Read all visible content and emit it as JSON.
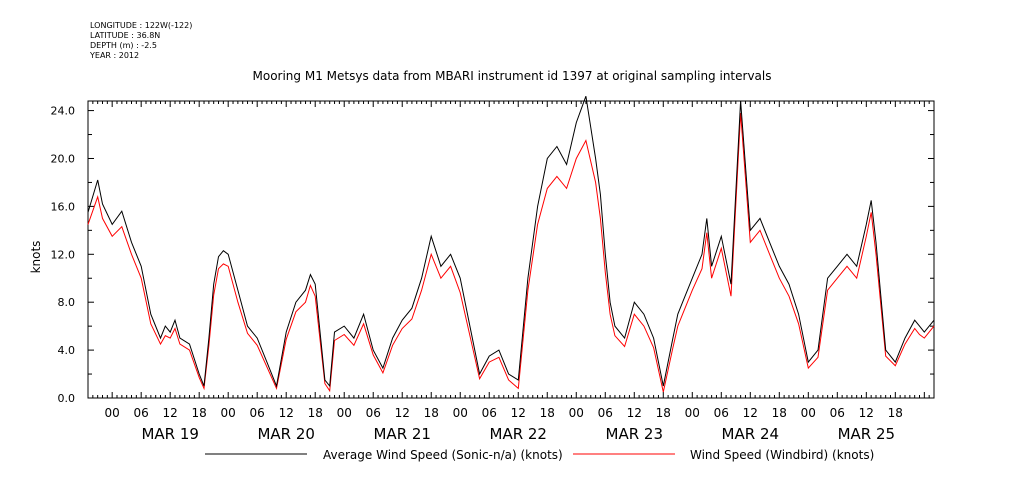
{
  "metadata": {
    "longitude": "LONGITUDE : 122W(-122)",
    "latitude": "LATITUDE : 36.8N",
    "depth": "DEPTH (m) : -2.5",
    "year": "YEAR : 2012"
  },
  "chart_data": {
    "type": "line",
    "title": "Mooring M1 Metsys data from MBARI instrument id 1397 at original sampling intervals",
    "xlabel": "",
    "ylabel": "knots",
    "ylim": [
      0,
      24.8
    ],
    "yticks": [
      0.0,
      4.0,
      8.0,
      12.0,
      16.0,
      20.0,
      24.0
    ],
    "ytick_labels": [
      "0.0",
      "4.0",
      "8.0",
      "12.0",
      "16.0",
      "20.0",
      "24.0"
    ],
    "x_unit": "hours since MAR 19 00",
    "xlim": [
      -5,
      170
    ],
    "hour_tick_labels": [
      "00",
      "06",
      "12",
      "18",
      "00",
      "06",
      "12",
      "18",
      "00",
      "06",
      "12",
      "18",
      "00",
      "06",
      "12",
      "18",
      "00",
      "06",
      "12",
      "18",
      "00",
      "06",
      "12",
      "18",
      "00",
      "06",
      "12",
      "18"
    ],
    "day_labels": [
      "MAR 19",
      "MAR 20",
      "MAR 21",
      "MAR 22",
      "MAR 23",
      "MAR 24",
      "MAR 25"
    ],
    "grid": false,
    "legend_position": "bottom",
    "colors": {
      "sonic": "#000000",
      "windbird": "#ff0000"
    },
    "series": [
      {
        "name": "Average Wind Speed (Sonic-n/a) (knots)",
        "x": [
          -5,
          -3,
          -2,
          0,
          2,
          4,
          6,
          8,
          10,
          11,
          12,
          13,
          14,
          16,
          18,
          19,
          20,
          21,
          22,
          23,
          24,
          26,
          28,
          30,
          32,
          34,
          36,
          38,
          40,
          41,
          42,
          44,
          45,
          46,
          48,
          50,
          52,
          54,
          56,
          58,
          60,
          62,
          64,
          66,
          68,
          70,
          72,
          74,
          76,
          78,
          80,
          82,
          84,
          86,
          88,
          90,
          92,
          94,
          96,
          98,
          100,
          101,
          102,
          103,
          104,
          106,
          108,
          110,
          112,
          114,
          116,
          117,
          118,
          120,
          122,
          123,
          124,
          126,
          128,
          130,
          132,
          134,
          136,
          138,
          140,
          142,
          144,
          146,
          148,
          150,
          152,
          154,
          156,
          157,
          158,
          160,
          162,
          164,
          166,
          167,
          168,
          170
        ],
        "values": [
          15.5,
          18.2,
          16.2,
          14.5,
          15.6,
          13.0,
          11.0,
          7.0,
          5.0,
          6.0,
          5.5,
          6.5,
          5.0,
          4.5,
          2.0,
          1.0,
          5.0,
          9.5,
          11.8,
          12.3,
          12.0,
          9.0,
          6.0,
          5.0,
          3.0,
          1.0,
          5.5,
          8.0,
          9.0,
          10.3,
          9.5,
          1.5,
          1.0,
          5.5,
          6.0,
          5.0,
          7.0,
          4.0,
          2.5,
          5.0,
          6.5,
          7.5,
          10.0,
          13.5,
          11.0,
          12.0,
          10.0,
          6.0,
          2.0,
          3.5,
          4.0,
          2.0,
          1.5,
          10.0,
          16.0,
          20.0,
          21.0,
          19.5,
          23.0,
          25.2,
          20.0,
          17.0,
          12.0,
          8.0,
          6.0,
          5.0,
          8.0,
          7.0,
          5.0,
          1.0,
          5.0,
          7.0,
          8.0,
          10.0,
          12.0,
          15.0,
          11.0,
          13.5,
          9.5,
          24.8,
          14.0,
          15.0,
          13.0,
          11.0,
          9.5,
          7.0,
          3.0,
          4.0,
          10.0,
          11.0,
          12.0,
          11.0,
          14.5,
          16.5,
          13.0,
          4.0,
          3.0,
          5.0,
          6.5,
          6.0,
          5.5,
          6.5
        ]
      },
      {
        "name": "Wind Speed (Windbird) (knots)",
        "x": [
          -5,
          -3,
          -2,
          0,
          2,
          4,
          6,
          8,
          10,
          11,
          12,
          13,
          14,
          16,
          18,
          19,
          20,
          21,
          22,
          23,
          24,
          26,
          28,
          30,
          32,
          34,
          36,
          38,
          40,
          41,
          42,
          44,
          45,
          46,
          48,
          50,
          52,
          54,
          56,
          58,
          60,
          62,
          64,
          66,
          68,
          70,
          72,
          74,
          76,
          78,
          80,
          82,
          84,
          86,
          88,
          90,
          92,
          94,
          96,
          98,
          100,
          101,
          102,
          103,
          104,
          106,
          108,
          110,
          112,
          114,
          116,
          117,
          118,
          120,
          122,
          123,
          124,
          126,
          128,
          130,
          132,
          134,
          136,
          138,
          140,
          142,
          144,
          146,
          148,
          150,
          152,
          154,
          156,
          157,
          158,
          160,
          162,
          164,
          166,
          167,
          168,
          170
        ],
        "values": [
          14.5,
          16.8,
          15.0,
          13.5,
          14.3,
          12.0,
          10.0,
          6.2,
          4.5,
          5.2,
          5.0,
          5.8,
          4.5,
          4.0,
          1.7,
          0.8,
          4.4,
          8.6,
          10.8,
          11.2,
          11.0,
          8.0,
          5.4,
          4.4,
          2.6,
          0.8,
          4.9,
          7.2,
          8.0,
          9.4,
          8.5,
          1.2,
          0.6,
          4.8,
          5.3,
          4.4,
          6.2,
          3.6,
          2.1,
          4.4,
          5.8,
          6.6,
          9.0,
          12.0,
          10.0,
          11.0,
          8.8,
          5.2,
          1.6,
          3.0,
          3.4,
          1.5,
          0.8,
          9.0,
          14.5,
          17.5,
          18.5,
          17.5,
          20.0,
          21.5,
          18.0,
          15.0,
          10.5,
          7.0,
          5.2,
          4.3,
          7.0,
          6.0,
          4.2,
          0.5,
          4.2,
          6.0,
          7.0,
          9.0,
          10.8,
          13.8,
          10.0,
          12.5,
          8.5,
          23.8,
          13.0,
          14.0,
          12.0,
          10.0,
          8.5,
          6.2,
          2.5,
          3.4,
          9.0,
          10.0,
          11.0,
          10.0,
          13.5,
          15.5,
          12.0,
          3.5,
          2.7,
          4.5,
          5.8,
          5.3,
          5.0,
          6.0
        ]
      }
    ]
  }
}
